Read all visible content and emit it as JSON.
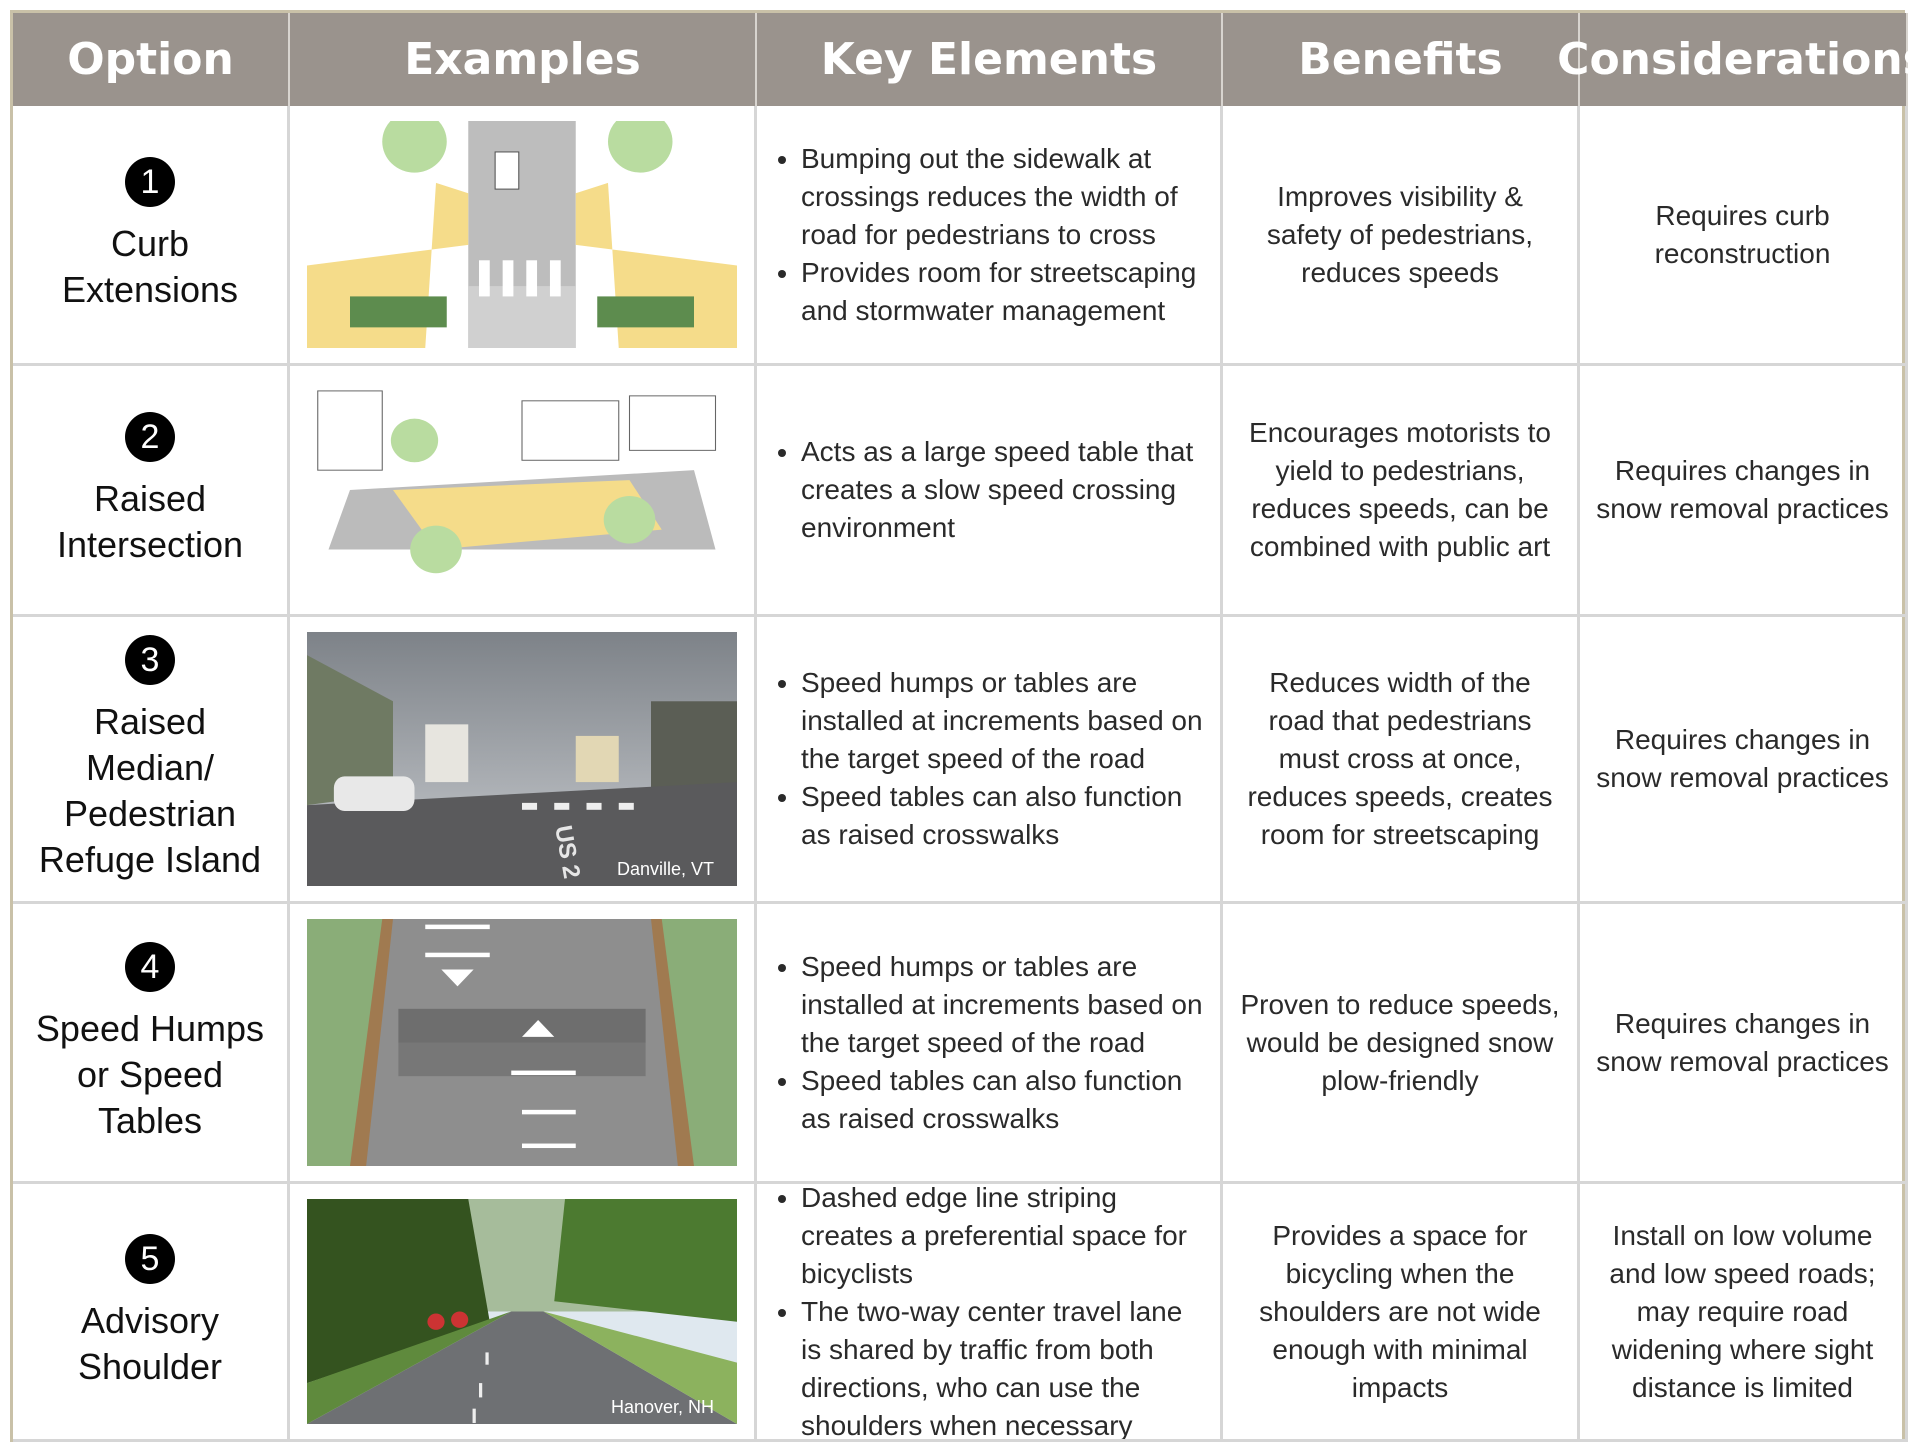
{
  "table": {
    "header": [
      "Option",
      "Examples",
      "Key Elements",
      "Benefits",
      "Considerations"
    ],
    "rows": [
      {
        "number": "1",
        "option": [
          "Curb",
          "Extensions"
        ],
        "key_elements": [
          "Bumping out the sidewalk at crossings reduces the width of road for pedestrians to cross",
          "Provides room for streetscaping and stormwater management"
        ],
        "benefits": "Improves visibility & safety of pedestrians, reduces speeds",
        "considerations": "Requires curb reconstruction"
      },
      {
        "number": "2",
        "option": [
          "Raised",
          "Intersection"
        ],
        "key_elements": [
          "Acts as a large speed table that creates a slow speed crossing environment"
        ],
        "benefits": "Encourages motorists to yield to pedestrians, reduces speeds, can be combined with public art",
        "considerations": "Requires changes in snow removal practices"
      },
      {
        "number": "3",
        "option": [
          "Raised Median/",
          "Pedestrian",
          "Refuge Island"
        ],
        "example": {
          "caption": "Danville, VT",
          "road_marking": "US 2"
        },
        "key_elements": [
          "Speed humps or tables are installed at increments based on the target speed of the road",
          "Speed tables can also function as raised crosswalks"
        ],
        "benefits": "Reduces width of the road that pedestrians must cross at once, reduces speeds, creates room for streetscaping",
        "considerations": "Requires changes in snow removal practices"
      },
      {
        "number": "4",
        "option": [
          "Speed Humps",
          "or Speed Tables"
        ],
        "key_elements": [
          "Speed humps or tables are installed at increments based on the target speed of the road",
          "Speed tables can also function as raised crosswalks"
        ],
        "benefits": "Proven to reduce speeds, would be designed snow plow-friendly",
        "considerations": "Requires changes in snow removal practices"
      },
      {
        "number": "5",
        "option": [
          "Advisory",
          "Shoulder"
        ],
        "example": {
          "caption": "Hanover, NH"
        },
        "key_elements": [
          "Dashed edge line striping creates a preferential space for bicyclists",
          "The two-way center travel lane is shared by traffic from both directions, who can use the shoulders when necessary"
        ],
        "benefits": "Provides a space for bicycling when the shoulders are not wide enough with minimal impacts",
        "considerations": "Install on low volume and low speed roads; may require road widening where sight distance is limited"
      }
    ]
  }
}
